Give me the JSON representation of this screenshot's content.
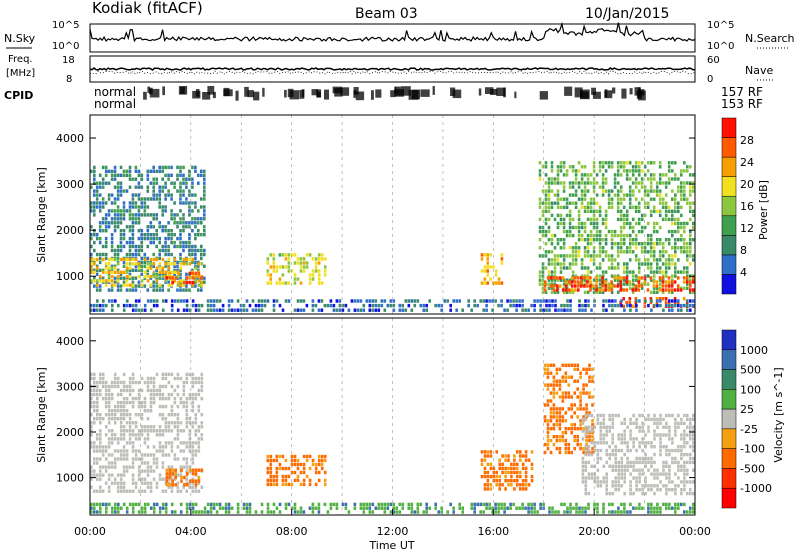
{
  "header": {
    "station": "Kodiak (fitACF)",
    "beam": "Beam 03",
    "date": "10/Jan/2015"
  },
  "meta_labels": {
    "nsky": "N.Sky",
    "nsearch": "N.Search",
    "freq_line1": "Freq.",
    "freq_line2": "[MHz]",
    "nave": "Nave",
    "cpid": "CPID",
    "noise_top": "10^5",
    "noise_bottom": "10^0",
    "freq_top": "18",
    "freq_bottom": "8",
    "nave_top": "60",
    "nave_bottom": "0"
  },
  "cpid_labels": {
    "row1_left": "normal",
    "row2_left": "normal",
    "row1_right": "157 RF",
    "row2_right": "153 RF"
  },
  "colors": {
    "power_scale": [
      "#1010e0",
      "#2f6fc8",
      "#3a8a6a",
      "#3fa050",
      "#8cc63f",
      "#f0e020",
      "#f5a000",
      "#ff5a00",
      "#ff1000"
    ],
    "velocity_scale": [
      "#2030c0",
      "#3a70b0",
      "#3a8a6a",
      "#50b040",
      "#bdbdb8",
      "#f5a010",
      "#ff6a00",
      "#ff3000",
      "#ff0000"
    ],
    "ground_scatter": "#bdbdb8"
  },
  "chart_data": [
    {
      "type": "heatmap",
      "panel": "power",
      "ylabel": "Slant Range [km]",
      "ylim": [
        180,
        4500
      ],
      "yticks": [
        1000,
        2000,
        3000,
        4000
      ],
      "xlim_hours": [
        0,
        24
      ],
      "colorbar": {
        "label": "Power [dB]",
        "ticks": [
          "4",
          "8",
          "12",
          "16",
          "20",
          "24",
          "28"
        ],
        "range": [
          0,
          32
        ]
      },
      "scatter_regions": [
        {
          "t_start": 0.0,
          "t_end": 4.6,
          "r_low": 650,
          "r_high": 3400,
          "value": 8
        },
        {
          "t_start": 0.0,
          "t_end": 4.5,
          "r_low": 750,
          "r_high": 1400,
          "value": 20
        },
        {
          "t_start": 3.0,
          "t_end": 4.5,
          "r_low": 800,
          "r_high": 1100,
          "value": 26
        },
        {
          "t_start": 7.0,
          "t_end": 9.4,
          "r_low": 800,
          "r_high": 1500,
          "value": 18
        },
        {
          "t_start": 15.5,
          "t_end": 16.4,
          "r_low": 800,
          "r_high": 1500,
          "value": 22
        },
        {
          "t_start": 17.8,
          "t_end": 24.0,
          "r_low": 600,
          "r_high": 3500,
          "value": 14
        },
        {
          "t_start": 18.0,
          "t_end": 24.0,
          "r_low": 650,
          "r_high": 1000,
          "value": 27
        },
        {
          "t_start": 21.0,
          "t_end": 24.0,
          "r_low": 300,
          "r_high": 550,
          "value": 28
        },
        {
          "t_start": 0.0,
          "t_end": 24.0,
          "r_low": 200,
          "r_high": 500,
          "value": 6
        }
      ]
    },
    {
      "type": "heatmap",
      "panel": "velocity",
      "ylabel": "Slant Range [km]",
      "xlabel": "Time UT",
      "ylim": [
        180,
        4500
      ],
      "yticks": [
        1000,
        2000,
        3000,
        4000
      ],
      "xlim_hours": [
        0,
        24
      ],
      "xticks": [
        "00:00",
        "04:00",
        "08:00",
        "12:00",
        "16:00",
        "20:00",
        "00:00"
      ],
      "colorbar": {
        "label": "Velocity [m s^-1]",
        "ticks": [
          "1000",
          "500",
          "100",
          "25",
          "-25",
          "-100",
          "-500",
          "-1000"
        ]
      },
      "scatter_regions": [
        {
          "t_start": 0.0,
          "t_end": 4.5,
          "r_low": 650,
          "r_high": 3300,
          "value": "ground"
        },
        {
          "t_start": 3.0,
          "t_end": 4.5,
          "r_low": 800,
          "r_high": 1200,
          "value": -100
        },
        {
          "t_start": 7.0,
          "t_end": 9.4,
          "r_low": 800,
          "r_high": 1500,
          "value": -100
        },
        {
          "t_start": 15.5,
          "t_end": 17.6,
          "r_low": 700,
          "r_high": 1600,
          "value": -100
        },
        {
          "t_start": 18.0,
          "t_end": 20.0,
          "r_low": 1500,
          "r_high": 3500,
          "value": -100
        },
        {
          "t_start": 19.5,
          "t_end": 24.0,
          "r_low": 600,
          "r_high": 2400,
          "value": "ground"
        },
        {
          "t_start": 0.0,
          "t_end": 24.0,
          "r_low": 200,
          "r_high": 450,
          "value": 100
        }
      ]
    }
  ]
}
